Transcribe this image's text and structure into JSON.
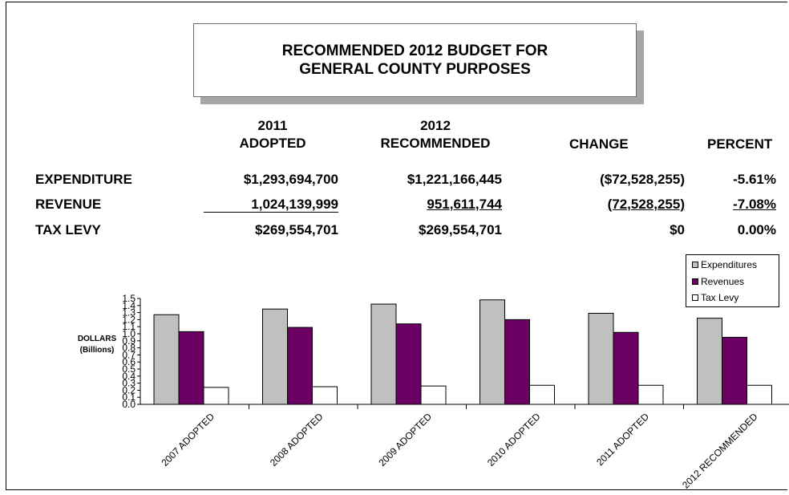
{
  "title": {
    "line1": "RECOMMENDED 2012 BUDGET FOR",
    "line2": "GENERAL COUNTY PURPOSES"
  },
  "table": {
    "headers": {
      "col1_line1": "2011",
      "col1_line2": "ADOPTED",
      "col2_line1": "2012",
      "col2_line2": "RECOMMENDED",
      "col3": "CHANGE",
      "col4": "PERCENT"
    },
    "rows": [
      {
        "label": "EXPENDITURE",
        "adopted_2011": "$1,293,694,700",
        "recommended_2012": "$1,221,166,445",
        "change": "($72,528,255)",
        "percent": "-5.61%"
      },
      {
        "label": "REVENUE",
        "adopted_2011": "1,024,139,999",
        "recommended_2012": "951,611,744",
        "change": "(72,528,255)",
        "percent": "-7.08%"
      },
      {
        "label": "TAX LEVY",
        "adopted_2011": "$269,554,701",
        "recommended_2012": "$269,554,701",
        "change": "$0",
        "percent": "0.00%"
      }
    ]
  },
  "chart_data": {
    "type": "bar",
    "categories": [
      "2007 ADOPTED",
      "2008 ADOPTED",
      "2009 ADOPTED",
      "2010 ADOPTED",
      "2011 ADOPTED",
      "2012 RECOMMENDED"
    ],
    "series": [
      {
        "name": "Expenditures",
        "color": "#c0c0c0",
        "values": [
          1.27,
          1.35,
          1.42,
          1.48,
          1.29,
          1.22
        ]
      },
      {
        "name": "Revenues",
        "color": "#6b0063",
        "values": [
          1.03,
          1.09,
          1.14,
          1.2,
          1.02,
          0.95
        ]
      },
      {
        "name": "Tax Levy",
        "color": "#ffffff",
        "values": [
          0.24,
          0.25,
          0.26,
          0.27,
          0.27,
          0.27
        ]
      }
    ],
    "ylabel_line1": "DOLLARS",
    "ylabel_line2": "(Billions)",
    "yticks": [
      "0.0",
      "0.1",
      "0.2",
      "0.3",
      "0.4",
      "0.5",
      "0.6",
      "0.7",
      "0.8",
      "0.9",
      "1.0",
      "1.1",
      "1.2",
      "1.3",
      "1.4",
      "1.5"
    ],
    "ylim": [
      0,
      1.5
    ],
    "legend_position": "top-right",
    "grid": false
  }
}
